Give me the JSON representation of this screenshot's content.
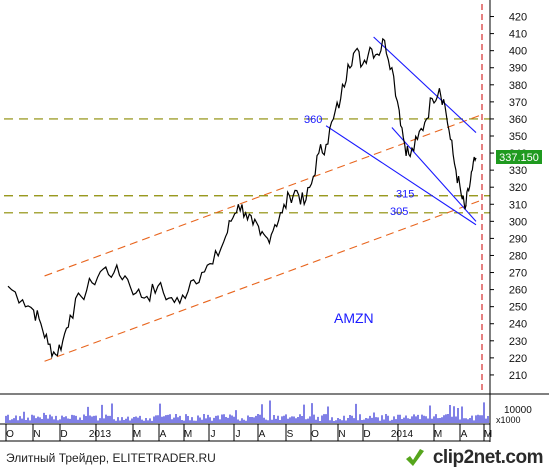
{
  "chart_data": {
    "type": "line",
    "symbol": "AMZN",
    "ylim": [
      200,
      425
    ],
    "y_ticks": [
      210,
      220,
      230,
      240,
      250,
      260,
      270,
      280,
      290,
      300,
      310,
      320,
      330,
      340,
      350,
      360,
      370,
      380,
      390,
      400,
      410,
      420
    ],
    "x_tick_labels": [
      "O",
      "N",
      "D",
      "2013",
      "M",
      "A",
      "M",
      "J",
      "J",
      "A",
      "S",
      "O",
      "N",
      "D",
      "2014",
      "M",
      "A",
      "M"
    ],
    "last_price": "337.150",
    "volume_label": "10000",
    "volume_unit": "x1000",
    "levels": [
      {
        "label": "360",
        "value": 360
      },
      {
        "label": "315",
        "value": 315
      },
      {
        "label": "305",
        "value": 305
      }
    ],
    "price_keypoints": [
      {
        "x": 0,
        "y": 262
      },
      {
        "x": 8,
        "y": 254
      },
      {
        "x": 14,
        "y": 248
      },
      {
        "x": 18,
        "y": 240
      },
      {
        "x": 22,
        "y": 228
      },
      {
        "x": 26,
        "y": 222
      },
      {
        "x": 30,
        "y": 230
      },
      {
        "x": 34,
        "y": 245
      },
      {
        "x": 40,
        "y": 256
      },
      {
        "x": 46,
        "y": 264
      },
      {
        "x": 52,
        "y": 272
      },
      {
        "x": 58,
        "y": 270
      },
      {
        "x": 64,
        "y": 268
      },
      {
        "x": 70,
        "y": 258
      },
      {
        "x": 76,
        "y": 256
      },
      {
        "x": 82,
        "y": 262
      },
      {
        "x": 88,
        "y": 255
      },
      {
        "x": 94,
        "y": 252
      },
      {
        "x": 100,
        "y": 265
      },
      {
        "x": 106,
        "y": 270
      },
      {
        "x": 112,
        "y": 275
      },
      {
        "x": 118,
        "y": 288
      },
      {
        "x": 122,
        "y": 300
      },
      {
        "x": 126,
        "y": 310
      },
      {
        "x": 130,
        "y": 305
      },
      {
        "x": 134,
        "y": 298
      },
      {
        "x": 138,
        "y": 292
      },
      {
        "x": 142,
        "y": 290
      },
      {
        "x": 146,
        "y": 298
      },
      {
        "x": 150,
        "y": 305
      },
      {
        "x": 154,
        "y": 315
      },
      {
        "x": 158,
        "y": 318
      },
      {
        "x": 162,
        "y": 310
      },
      {
        "x": 166,
        "y": 322
      },
      {
        "x": 170,
        "y": 340
      },
      {
        "x": 174,
        "y": 345
      },
      {
        "x": 178,
        "y": 360
      },
      {
        "x": 182,
        "y": 372
      },
      {
        "x": 186,
        "y": 392
      },
      {
        "x": 190,
        "y": 400
      },
      {
        "x": 194,
        "y": 392
      },
      {
        "x": 198,
        "y": 402
      },
      {
        "x": 202,
        "y": 398
      },
      {
        "x": 206,
        "y": 406
      },
      {
        "x": 210,
        "y": 390
      },
      {
        "x": 214,
        "y": 365
      },
      {
        "x": 217,
        "y": 345
      },
      {
        "x": 220,
        "y": 338
      },
      {
        "x": 224,
        "y": 348
      },
      {
        "x": 228,
        "y": 358
      },
      {
        "x": 232,
        "y": 372
      },
      {
        "x": 236,
        "y": 378
      },
      {
        "x": 239,
        "y": 368
      },
      {
        "x": 242,
        "y": 348
      },
      {
        "x": 245,
        "y": 330
      },
      {
        "x": 248,
        "y": 315
      },
      {
        "x": 250,
        "y": 307
      },
      {
        "x": 252,
        "y": 318
      },
      {
        "x": 254,
        "y": 330
      },
      {
        "x": 256,
        "y": 337.15
      }
    ]
  },
  "footer": {
    "source": "Элитный Трейдер, ELITETRADER.RU",
    "brand": "clip2net.com"
  }
}
